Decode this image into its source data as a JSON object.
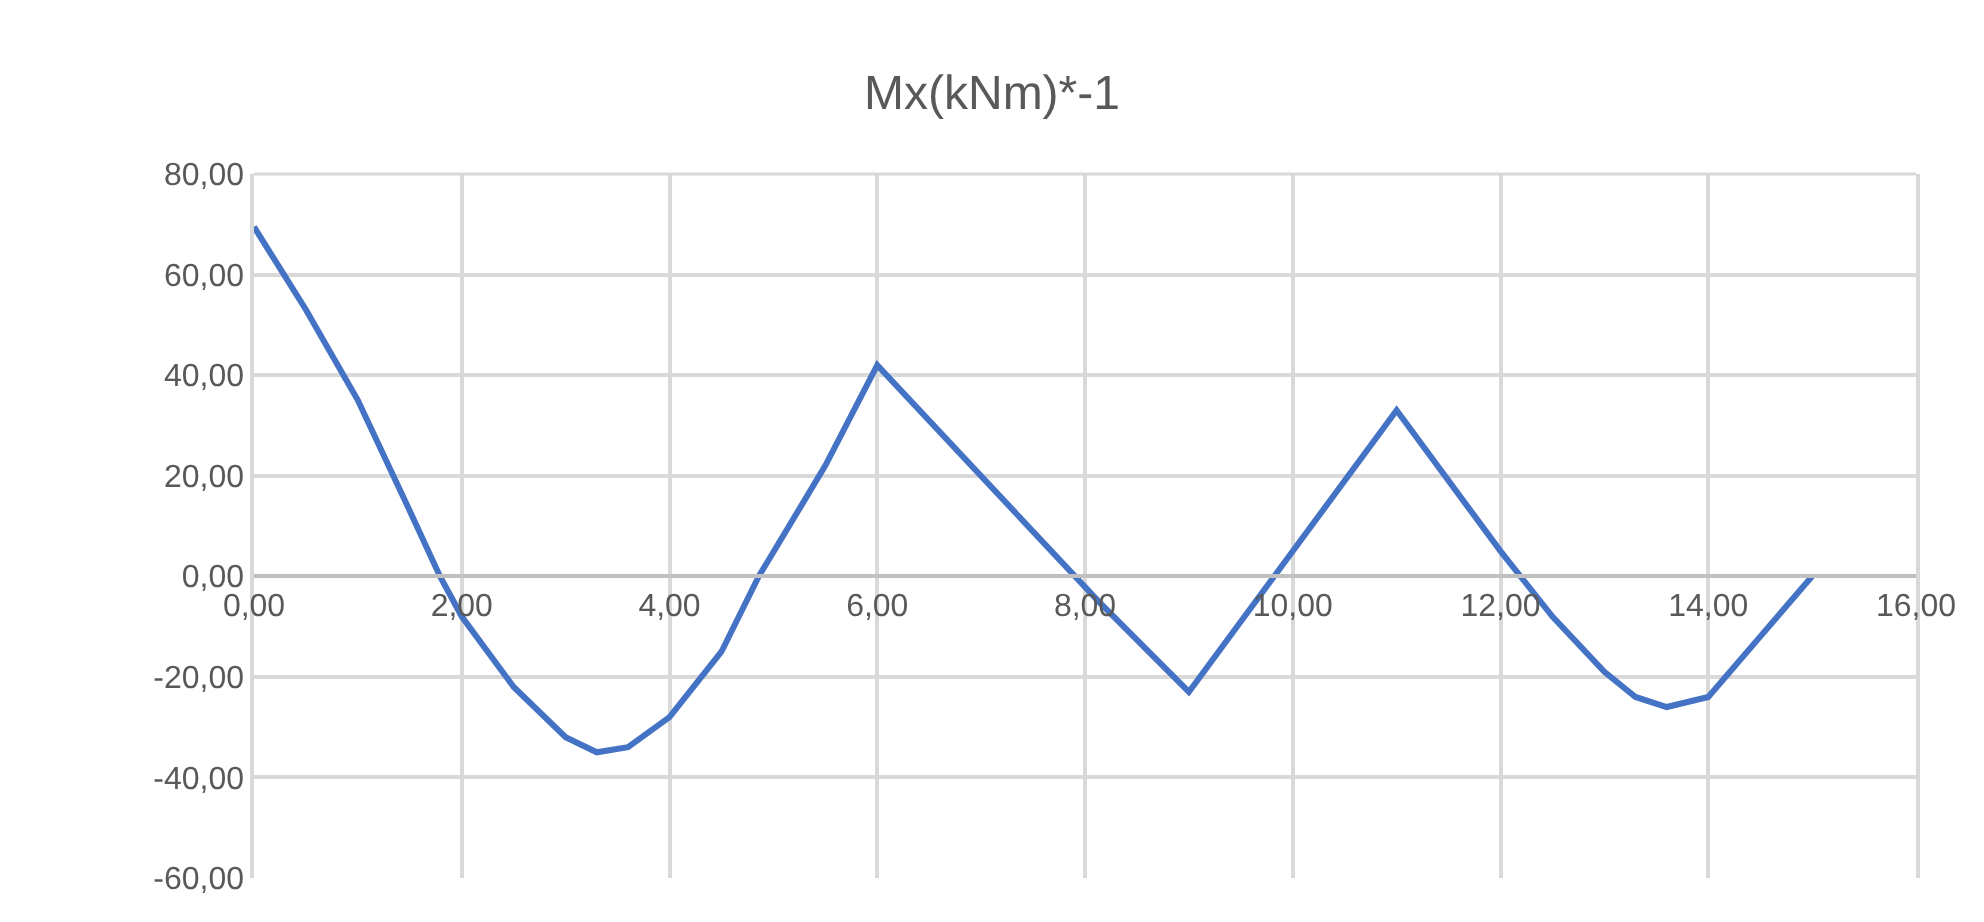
{
  "chart_data": {
    "type": "line",
    "title": "Mx(kNm)*-1",
    "x": [
      0,
      0.5,
      1,
      1.5,
      1.79,
      2,
      2.5,
      3,
      3.3,
      3.6,
      4,
      4.5,
      4.86,
      5.5,
      6,
      8.13,
      9,
      11,
      12,
      12.5,
      13,
      13.3,
      13.6,
      14,
      14.5,
      15
    ],
    "series": [
      {
        "color": "#4472c4",
        "values": [
          69.5,
          53,
          35,
          13,
          0,
          -8,
          -22,
          -32,
          -35,
          -34,
          -28,
          -15,
          0,
          22,
          42,
          -5,
          -23,
          33,
          5,
          -8,
          -19,
          -24,
          -26,
          -24,
          -12,
          0
        ]
      }
    ],
    "xlim": [
      0,
      16
    ],
    "xticks": [
      {
        "value": 0,
        "label": "0,00"
      },
      {
        "value": 2,
        "label": "2,00"
      },
      {
        "value": 4,
        "label": "4,00"
      },
      {
        "value": 6,
        "label": "6,00"
      },
      {
        "value": 8,
        "label": "8,00"
      },
      {
        "value": 10,
        "label": "10,00"
      },
      {
        "value": 12,
        "label": "12,00"
      },
      {
        "value": 14,
        "label": "14,00"
      },
      {
        "value": 16,
        "label": "16,00"
      }
    ],
    "ylim": [
      -60,
      80
    ],
    "yticks": [
      {
        "value": -60,
        "label": "-60,00"
      },
      {
        "value": -40,
        "label": "-40,00"
      },
      {
        "value": -20,
        "label": "-20,00"
      },
      {
        "value": 0,
        "label": "0,00"
      },
      {
        "value": 20,
        "label": "20,00"
      },
      {
        "value": 40,
        "label": "40,00"
      },
      {
        "value": 60,
        "label": "60,00"
      },
      {
        "value": 80,
        "label": "80,00"
      }
    ],
    "grid": true,
    "marker": "none",
    "line_style": "solid"
  }
}
